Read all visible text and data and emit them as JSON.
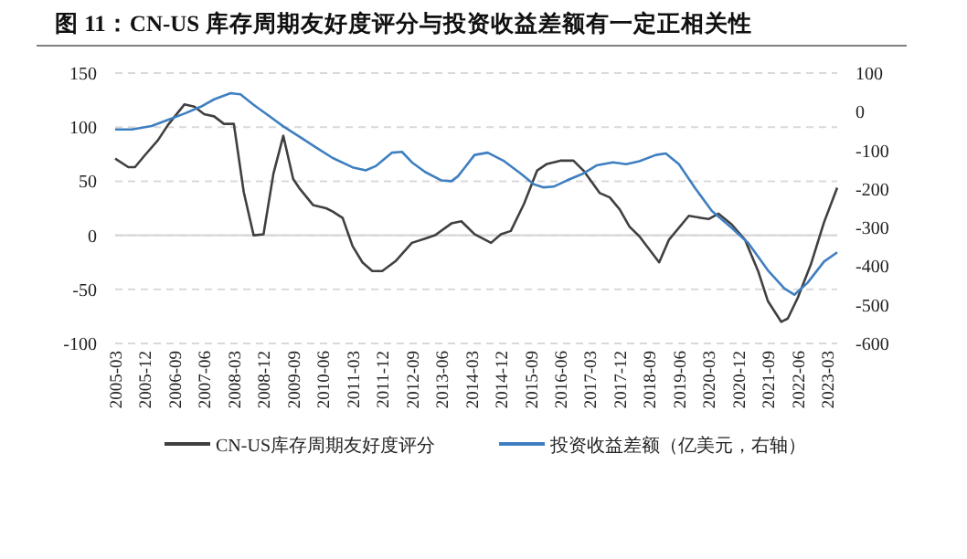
{
  "chart_data": {
    "type": "line",
    "title": "图 11：CN-US 库存周期友好度评分与投资收益差额有一定正相关性",
    "xlim": [
      "2005-03",
      "2023-06"
    ],
    "xticks": [
      "2005-03",
      "2005-12",
      "2006-09",
      "2007-06",
      "2008-03",
      "2008-12",
      "2009-09",
      "2010-06",
      "2011-03",
      "2011-12",
      "2012-09",
      "2013-06",
      "2014-03",
      "2014-12",
      "2015-09",
      "2016-06",
      "2017-03",
      "2017-12",
      "2018-09",
      "2019-06",
      "2020-03",
      "2020-12",
      "2021-09",
      "2022-06",
      "2023-03"
    ],
    "ylim": [
      -100,
      150
    ],
    "yticks": [
      -100,
      -50,
      0,
      50,
      100,
      150
    ],
    "y2lim": [
      -600,
      100
    ],
    "y2ticks": [
      -600,
      -500,
      -400,
      -300,
      -200,
      -100,
      0,
      100
    ],
    "grid": "y",
    "legend": "bottom",
    "ref_lines": [
      {
        "axis": "y",
        "value": 0,
        "color": "#d9d9d9",
        "line_style": "solid"
      }
    ],
    "series": [
      {
        "name": "CN-US库存周期友好度评分",
        "color": "#404040",
        "x": [
          "2005-03",
          "2005-07",
          "2005-09",
          "2005-12",
          "2006-04",
          "2006-07",
          "2006-12",
          "2007-03",
          "2007-06",
          "2007-09",
          "2007-12",
          "2008-03",
          "2008-06",
          "2008-09",
          "2008-12",
          "2009-03",
          "2009-06",
          "2009-09",
          "2009-11",
          "2010-03",
          "2010-07",
          "2010-09",
          "2010-12",
          "2011-03",
          "2011-06",
          "2011-09",
          "2011-12",
          "2012-04",
          "2012-09",
          "2013-01",
          "2013-04",
          "2013-09",
          "2013-12",
          "2014-04",
          "2014-09",
          "2014-12",
          "2015-03",
          "2015-07",
          "2015-11",
          "2016-02",
          "2016-06",
          "2016-10",
          "2017-01",
          "2017-06",
          "2017-09",
          "2017-12",
          "2018-03",
          "2018-06",
          "2018-09",
          "2018-12",
          "2019-03",
          "2019-09",
          "2020-01",
          "2020-03",
          "2020-06",
          "2020-10",
          "2021-02",
          "2021-06",
          "2021-09",
          "2022-01",
          "2022-03",
          "2022-06",
          "2022-10",
          "2023-02",
          "2023-06"
        ],
        "values": [
          71,
          63,
          63,
          74,
          88,
          102,
          121,
          119,
          112,
          110,
          103,
          103,
          40,
          0,
          1,
          57,
          92,
          52,
          43,
          28,
          25,
          22,
          16,
          -10,
          -25,
          -33,
          -33,
          -24,
          -7,
          -3,
          0,
          11,
          13,
          1,
          -7,
          1,
          4,
          29,
          60,
          66,
          69,
          69,
          60,
          39,
          35,
          24,
          8,
          -1,
          -13,
          -25,
          -4,
          18,
          16,
          15,
          20,
          10,
          -4,
          -33,
          -61,
          -80,
          -77,
          -58,
          -27,
          12,
          44
        ]
      },
      {
        "name": "投资收益差额（亿美元，右轴）",
        "color": "#3f7fc1",
        "axis": "y2",
        "x": [
          "2005-03",
          "2005-08",
          "2006-02",
          "2006-07",
          "2006-12",
          "2007-05",
          "2007-09",
          "2008-02",
          "2008-05",
          "2008-09",
          "2009-02",
          "2009-06",
          "2009-11",
          "2010-04",
          "2010-09",
          "2011-03",
          "2011-07",
          "2011-10",
          "2012-03",
          "2012-06",
          "2012-09",
          "2013-01",
          "2013-06",
          "2013-09",
          "2013-11",
          "2014-04",
          "2014-08",
          "2015-01",
          "2015-06",
          "2015-10",
          "2016-01",
          "2016-04",
          "2016-08",
          "2017-01",
          "2017-05",
          "2017-10",
          "2018-02",
          "2018-06",
          "2018-11",
          "2019-02",
          "2019-06",
          "2019-11",
          "2020-04",
          "2020-10",
          "2021-03",
          "2021-09",
          "2022-02",
          "2022-05",
          "2022-09",
          "2023-02",
          "2023-06"
        ],
        "values": [
          -46,
          -46,
          -37,
          -21,
          -5,
          13,
          32,
          48,
          45,
          18,
          -13,
          -38,
          -65,
          -93,
          -120,
          -144,
          -152,
          -141,
          -106,
          -104,
          -131,
          -156,
          -178,
          -180,
          -167,
          -112,
          -106,
          -128,
          -160,
          -188,
          -196,
          -194,
          -178,
          -160,
          -139,
          -131,
          -136,
          -128,
          -112,
          -108,
          -136,
          -199,
          -257,
          -301,
          -340,
          -411,
          -458,
          -474,
          -443,
          -388,
          -364
        ]
      }
    ]
  }
}
